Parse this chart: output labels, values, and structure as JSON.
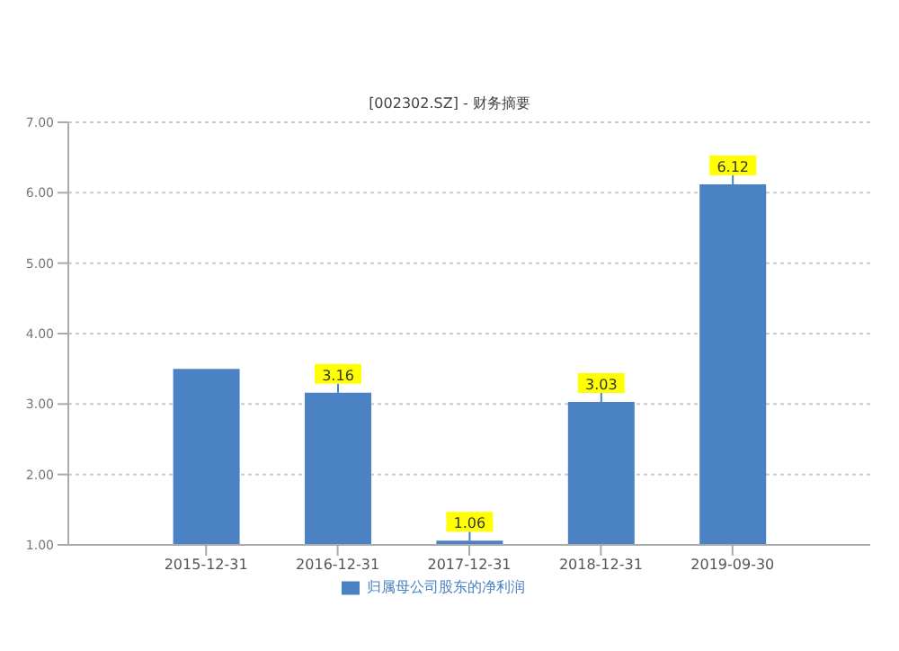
{
  "chart_data": {
    "type": "bar",
    "title": "[002302.SZ] - 财务摘要",
    "categories": [
      "2015-12-31",
      "2016-12-31",
      "2017-12-31",
      "2018-12-31",
      "2019-09-30"
    ],
    "series": [
      {
        "name": "归属母公司股东的净利润",
        "color": "#4a82c3",
        "values": [
          3.5,
          3.16,
          1.06,
          3.03,
          6.12
        ],
        "value_labels": [
          null,
          "3.16",
          "1.06",
          "3.03",
          "6.12"
        ]
      }
    ],
    "ylim": [
      1,
      7
    ],
    "yticks": [
      {
        "value": 1,
        "label": "1.00"
      },
      {
        "value": 2,
        "label": "2.00"
      },
      {
        "value": 3,
        "label": "3.00"
      },
      {
        "value": 4,
        "label": "4.00"
      },
      {
        "value": 5,
        "label": "5.00"
      },
      {
        "value": 6,
        "label": "6.00"
      },
      {
        "value": 7,
        "label": "7.00"
      }
    ],
    "grid": "y",
    "legend": "bottom"
  }
}
